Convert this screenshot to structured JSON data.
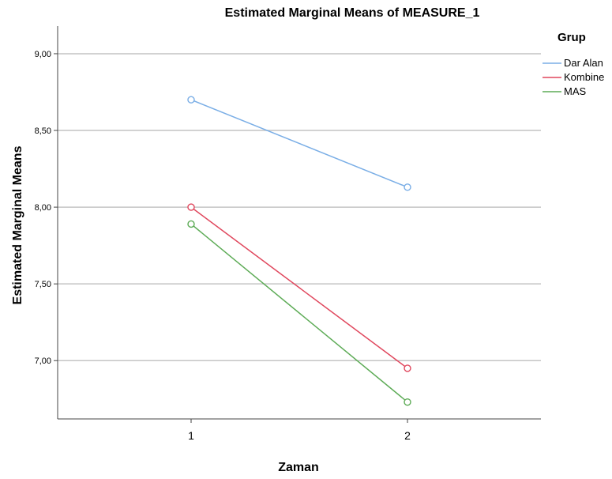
{
  "chart_data": {
    "type": "line",
    "title": "Estimated Marginal Means of MEASURE_1",
    "xlabel": "Zaman",
    "ylabel": "Estimated Marginal Means",
    "categories": [
      "1",
      "2"
    ],
    "ylim": [
      6.62,
      9.18
    ],
    "yticks": [
      9.0,
      8.5,
      8.0,
      7.5,
      7.0
    ],
    "ytick_labels": [
      "9,00",
      "8,50",
      "8,00",
      "7,50",
      "7,00"
    ],
    "grid": "horizontal",
    "legend": {
      "title": "Grup",
      "position": "top-right"
    },
    "series": [
      {
        "name": "Dar Alan",
        "values": [
          8.7,
          8.13
        ],
        "color": "#7aaee6"
      },
      {
        "name": "Kombine",
        "values": [
          8.0,
          6.95
        ],
        "color": "#e0475d"
      },
      {
        "name": "MAS",
        "values": [
          7.89,
          6.73
        ],
        "color": "#5dab56"
      }
    ]
  }
}
